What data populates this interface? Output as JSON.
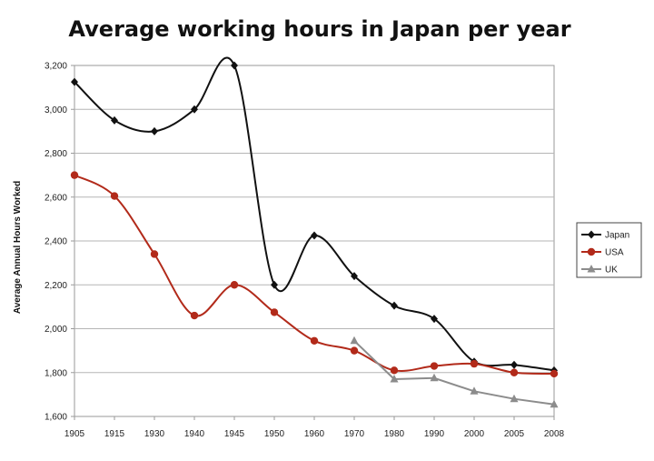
{
  "chart_data": {
    "type": "line",
    "title": "Average working hours in Japan per year",
    "xlabel": "",
    "ylabel": "Average Annual Hours Worked",
    "categories": [
      "1905",
      "1915",
      "1930",
      "1940",
      "1945",
      "1950",
      "1960",
      "1970",
      "1980",
      "1990",
      "2000",
      "2005",
      "2008"
    ],
    "y_ticks": [
      "1,600",
      "1,800",
      "2,000",
      "2,200",
      "2,400",
      "2,600",
      "2,800",
      "3,000",
      "3,200"
    ],
    "ylim": [
      1600,
      3200
    ],
    "grid": "horizontal",
    "legend_position": "right",
    "series": [
      {
        "name": "Japan",
        "color": "#111111",
        "marker": "diamond",
        "values": [
          3125,
          2950,
          2900,
          3000,
          3200,
          2200,
          2425,
          2240,
          2105,
          2045,
          1850,
          1835,
          1810
        ]
      },
      {
        "name": "USA",
        "color": "#b22a1a",
        "marker": "circle",
        "values": [
          2700,
          2605,
          2340,
          2060,
          2200,
          2075,
          1945,
          1900,
          1810,
          1830,
          1840,
          1800,
          1795
        ]
      },
      {
        "name": "UK",
        "color": "#8c8c8c",
        "marker": "triangle",
        "values": [
          null,
          null,
          null,
          null,
          null,
          null,
          null,
          1945,
          1770,
          1775,
          1715,
          1680,
          1655
        ]
      }
    ]
  }
}
